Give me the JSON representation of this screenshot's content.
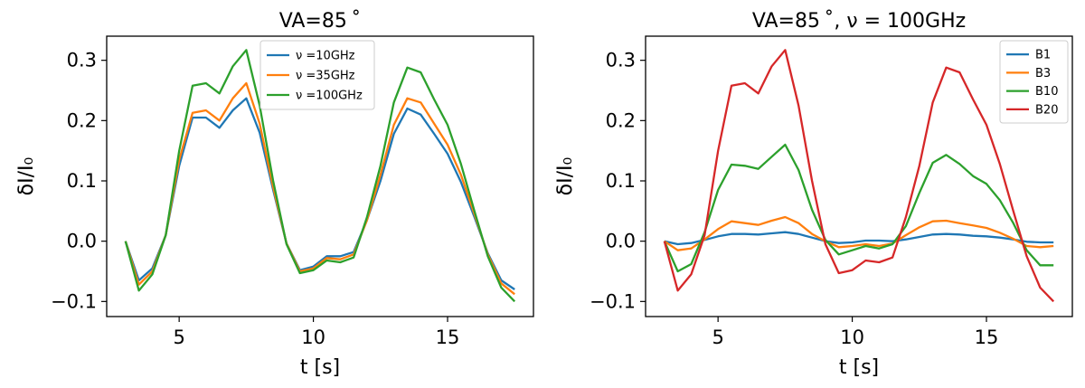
{
  "chart_data": [
    {
      "type": "line",
      "title": "VA=85$^\\circ$",
      "title_display": "VA=85 ˚",
      "xlabel": "t [s]",
      "ylabel": "δI/I₀",
      "xlim": [
        2.3,
        18.2
      ],
      "ylim": [
        -0.125,
        0.34
      ],
      "xticks": [
        5,
        10,
        15
      ],
      "yticks": [
        -0.1,
        0.0,
        0.1,
        0.2,
        0.3
      ],
      "ytick_labels": [
        "−0.1",
        "0.0",
        "0.1",
        "0.2",
        "0.3"
      ],
      "grid": false,
      "legend_position": "top-right",
      "x": [
        3.0,
        3.5,
        4.0,
        4.5,
        5.0,
        5.5,
        6.0,
        6.5,
        7.0,
        7.5,
        8.0,
        8.5,
        9.0,
        9.5,
        10.0,
        10.5,
        11.0,
        11.5,
        12.0,
        12.5,
        13.0,
        13.5,
        14.0,
        14.5,
        15.0,
        15.5,
        16.0,
        16.5,
        17.0,
        17.5
      ],
      "series": [
        {
          "name": "ν =10GHz",
          "color": "#1f77b4",
          "values": [
            0.0,
            -0.065,
            -0.045,
            0.01,
            0.125,
            0.205,
            0.205,
            0.188,
            0.217,
            0.237,
            0.18,
            0.085,
            -0.004,
            -0.048,
            -0.042,
            -0.025,
            -0.025,
            -0.018,
            0.035,
            0.1,
            0.178,
            0.22,
            0.21,
            0.178,
            0.145,
            0.098,
            0.04,
            -0.02,
            -0.065,
            -0.08
          ]
        },
        {
          "name": "ν =35GHz",
          "color": "#ff7f0e",
          "values": [
            0.0,
            -0.072,
            -0.05,
            0.01,
            0.135,
            0.213,
            0.217,
            0.2,
            0.237,
            0.262,
            0.195,
            0.09,
            -0.004,
            -0.05,
            -0.045,
            -0.028,
            -0.03,
            -0.022,
            0.035,
            0.11,
            0.193,
            0.237,
            0.23,
            0.195,
            0.16,
            0.11,
            0.045,
            -0.022,
            -0.07,
            -0.088
          ]
        },
        {
          "name": "ν =100GHz",
          "color": "#2ca02c",
          "values": [
            0.0,
            -0.082,
            -0.055,
            0.01,
            0.15,
            0.258,
            0.262,
            0.245,
            0.29,
            0.317,
            0.225,
            0.1,
            -0.005,
            -0.053,
            -0.048,
            -0.032,
            -0.035,
            -0.027,
            0.04,
            0.125,
            0.23,
            0.288,
            0.28,
            0.235,
            0.193,
            0.128,
            0.05,
            -0.025,
            -0.077,
            -0.1
          ]
        }
      ]
    },
    {
      "type": "line",
      "title": "VA=85$^\\circ$, $\\nu$ = 100GHz",
      "title_display": "VA=85 ˚, ν = 100GHz",
      "xlabel": "t [s]",
      "ylabel": "δI/I₀",
      "xlim": [
        2.3,
        18.2
      ],
      "ylim": [
        -0.125,
        0.34
      ],
      "xticks": [
        5,
        10,
        15
      ],
      "yticks": [
        -0.1,
        0.0,
        0.1,
        0.2,
        0.3
      ],
      "ytick_labels": [
        "−0.1",
        "0.0",
        "0.1",
        "0.2",
        "0.3"
      ],
      "grid": false,
      "legend_position": "top-right",
      "x": [
        3.0,
        3.5,
        4.0,
        4.5,
        5.0,
        5.5,
        6.0,
        6.5,
        7.0,
        7.5,
        8.0,
        8.5,
        9.0,
        9.5,
        10.0,
        10.5,
        11.0,
        11.5,
        12.0,
        12.5,
        13.0,
        13.5,
        14.0,
        14.5,
        15.0,
        15.5,
        16.0,
        16.5,
        17.0,
        17.5
      ],
      "series": [
        {
          "name": "B1",
          "color": "#1f77b4",
          "values": [
            0.0,
            -0.005,
            -0.003,
            0.002,
            0.008,
            0.012,
            0.012,
            0.011,
            0.013,
            0.015,
            0.012,
            0.006,
            0.0,
            -0.003,
            -0.002,
            0.001,
            0.001,
            0.0,
            0.003,
            0.007,
            0.011,
            0.012,
            0.011,
            0.009,
            0.008,
            0.006,
            0.003,
            -0.001,
            -0.002,
            -0.002
          ]
        },
        {
          "name": "B3",
          "color": "#ff7f0e",
          "values": [
            0.0,
            -0.015,
            -0.012,
            0.003,
            0.02,
            0.033,
            0.03,
            0.027,
            0.034,
            0.04,
            0.03,
            0.012,
            0.0,
            -0.01,
            -0.008,
            -0.005,
            -0.008,
            -0.004,
            0.01,
            0.023,
            0.033,
            0.034,
            0.03,
            0.026,
            0.022,
            0.014,
            0.004,
            -0.008,
            -0.01,
            -0.008
          ]
        },
        {
          "name": "B10",
          "color": "#2ca02c",
          "values": [
            0.0,
            -0.05,
            -0.038,
            0.015,
            0.085,
            0.127,
            0.125,
            0.12,
            0.14,
            0.16,
            0.118,
            0.052,
            0.002,
            -0.022,
            -0.015,
            -0.008,
            -0.012,
            -0.005,
            0.025,
            0.08,
            0.13,
            0.143,
            0.128,
            0.108,
            0.095,
            0.068,
            0.03,
            -0.015,
            -0.04,
            -0.04
          ]
        },
        {
          "name": "B20",
          "color": "#d62728",
          "values": [
            0.0,
            -0.082,
            -0.055,
            0.01,
            0.15,
            0.258,
            0.262,
            0.245,
            0.29,
            0.317,
            0.225,
            0.1,
            -0.005,
            -0.053,
            -0.048,
            -0.032,
            -0.035,
            -0.027,
            0.04,
            0.125,
            0.23,
            0.288,
            0.28,
            0.235,
            0.193,
            0.128,
            0.05,
            -0.025,
            -0.077,
            -0.1
          ]
        }
      ]
    }
  ]
}
